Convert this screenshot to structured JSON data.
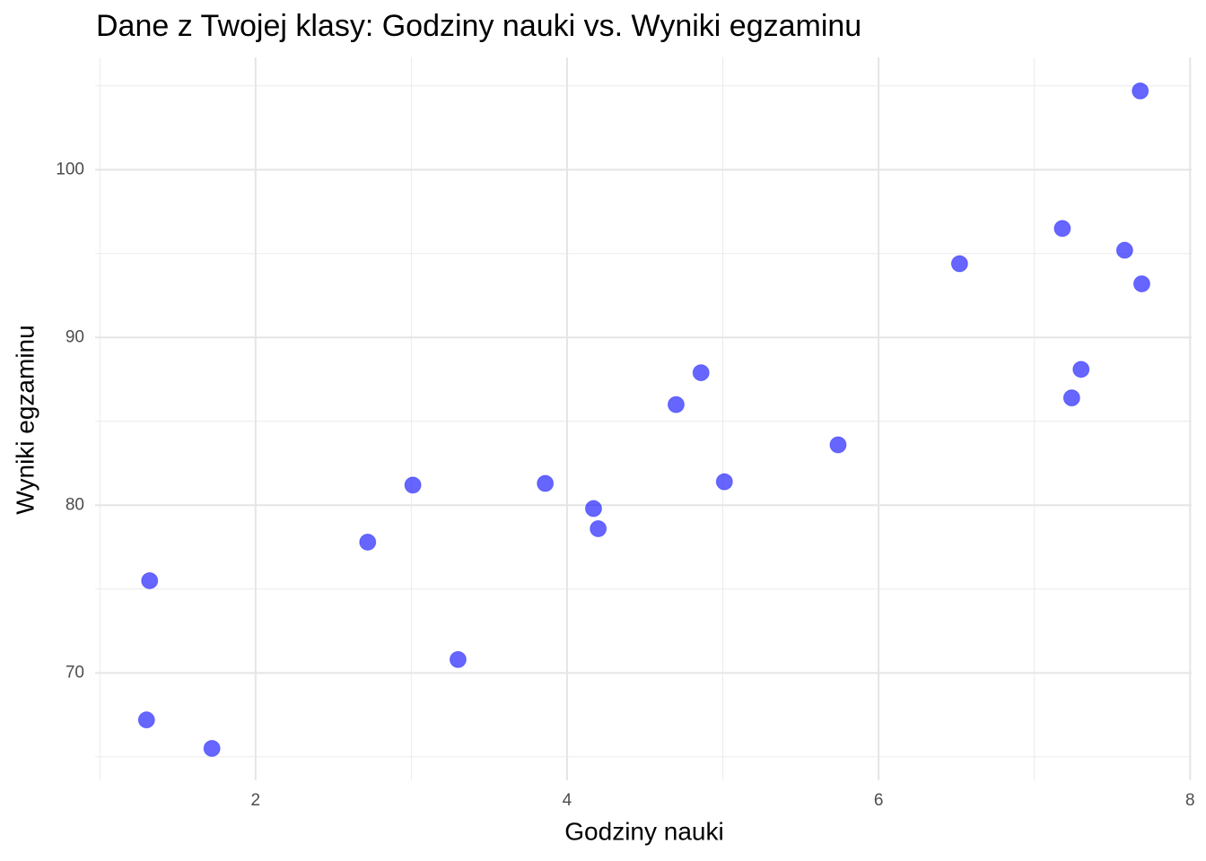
{
  "chart_data": {
    "type": "scatter",
    "title": "Dane z Twojej klasy: Godziny nauki vs. Wyniki egzaminu",
    "x_label": "Godziny nauki",
    "y_label": "Wyniki egzaminu",
    "color": "#0000ff",
    "grid": true,
    "xlim": [
      0.97,
      8.01
    ],
    "xticks": [
      2,
      4,
      6,
      8
    ],
    "x_minor_grid": [
      1,
      3,
      5,
      7
    ],
    "ylim": [
      63.6,
      106.7
    ],
    "yticks": [
      70,
      80,
      90,
      100
    ],
    "y_minor_grid": [
      65,
      75,
      85,
      95,
      105
    ],
    "x": [
      7.68,
      7.18,
      7.58,
      7.69,
      6.52,
      7.3,
      7.24,
      4.86,
      4.7,
      5.74,
      5.01,
      3.86,
      3.01,
      4.17,
      4.2,
      2.72,
      1.32,
      3.3,
      1.3,
      1.72
    ],
    "values": [
      104.7,
      96.5,
      95.2,
      93.2,
      94.4,
      88.1,
      86.4,
      87.9,
      86.0,
      83.6,
      81.4,
      81.3,
      81.2,
      79.8,
      78.6,
      77.8,
      75.5,
      70.8,
      67.2,
      65.5
    ]
  }
}
